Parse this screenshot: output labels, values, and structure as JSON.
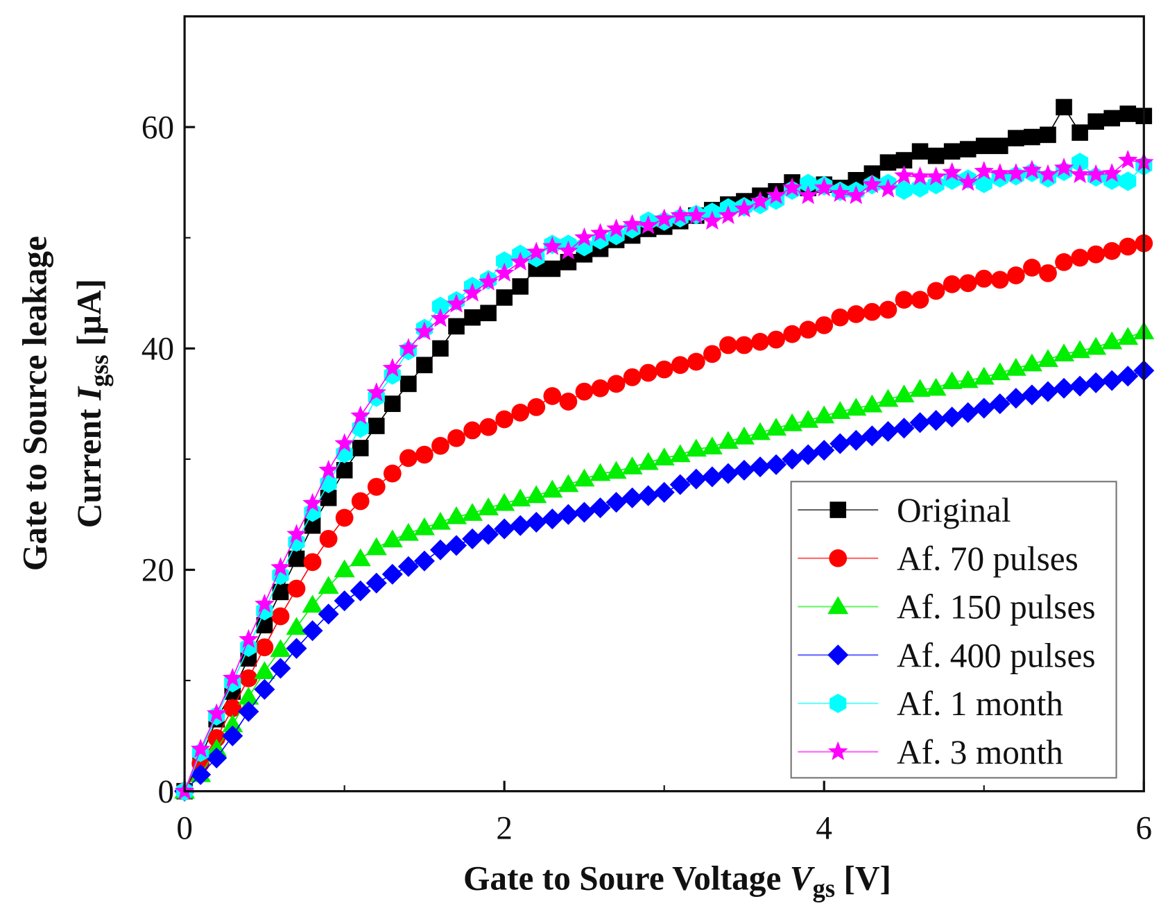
{
  "chart_data": {
    "type": "scatter",
    "title": "",
    "xlabel": {
      "main": "Gate to Soure Voltage ",
      "var": "V",
      "sub": "gs",
      "unit": " [V]"
    },
    "ylabel": {
      "line1": "Gate to Source leakage",
      "line2_main": "Current ",
      "var": "I",
      "sub": "gss",
      "unit": " [µA]"
    },
    "xlim": [
      0,
      6
    ],
    "ylim": [
      0,
      70
    ],
    "xticks": [
      "0",
      "2",
      "4",
      "6"
    ],
    "yticks": [
      "0",
      "20",
      "40",
      "60"
    ],
    "grid": false,
    "legend_position": "bottom-right",
    "x": [
      0,
      0.1,
      0.2,
      0.3,
      0.4,
      0.5,
      0.6,
      0.7,
      0.8,
      0.9,
      1.0,
      1.1,
      1.2,
      1.3,
      1.4,
      1.5,
      1.6,
      1.7,
      1.8,
      1.9,
      2.0,
      2.1,
      2.2,
      2.3,
      2.4,
      2.5,
      2.6,
      2.7,
      2.8,
      2.9,
      3.0,
      3.1,
      3.2,
      3.3,
      3.4,
      3.5,
      3.6,
      3.7,
      3.8,
      3.9,
      4.0,
      4.1,
      4.2,
      4.3,
      4.4,
      4.5,
      4.6,
      4.7,
      4.8,
      4.9,
      5.0,
      5.1,
      5.2,
      5.3,
      5.4,
      5.5,
      5.6,
      5.7,
      5.8,
      5.9,
      6.0
    ],
    "series": [
      {
        "name": "Original",
        "color": "#000000",
        "marker": "square",
        "values": [
          0,
          3,
          6.5,
          9,
          12,
          15,
          18,
          21,
          24,
          26.5,
          29,
          31,
          33,
          35,
          36.8,
          38.5,
          40,
          42,
          42.8,
          43.2,
          44.6,
          45.6,
          47.2,
          47.2,
          47.8,
          48.5,
          49,
          49.8,
          50.2,
          50.8,
          51,
          51.5,
          52,
          52.5,
          53,
          53.3,
          53.8,
          54.2,
          55,
          54.5,
          54.8,
          54.5,
          55.2,
          55.8,
          56.8,
          57,
          57.8,
          57.4,
          57.8,
          58,
          58.3,
          58.3,
          59,
          59.1,
          59.3,
          61.8,
          59.5,
          60.5,
          60.8,
          61.2,
          61
        ]
      },
      {
        "name": "Af. 70 pulses",
        "color": "#ff0000",
        "marker": "circle",
        "values": [
          0,
          2.5,
          4.8,
          7.5,
          10.2,
          13,
          15.8,
          18.3,
          20.7,
          22.8,
          24.7,
          26.2,
          27.5,
          28.7,
          30.1,
          30.4,
          31.2,
          31.9,
          32.6,
          32.9,
          33.6,
          34.2,
          34.7,
          35.7,
          35.2,
          36.1,
          36.4,
          36.8,
          37.4,
          37.8,
          38.1,
          38.5,
          38.8,
          39.5,
          40.3,
          40.3,
          40.6,
          40.8,
          41.3,
          41.7,
          42.1,
          42.8,
          43.1,
          43.3,
          43.5,
          44.4,
          44.4,
          45.2,
          45.8,
          45.9,
          46.3,
          46.2,
          46.6,
          47.3,
          46.8,
          47.8,
          48.2,
          48.5,
          48.8,
          49.2,
          49.5
        ]
      },
      {
        "name": "Af. 150 pulses",
        "color": "#00ee00",
        "marker": "triangle",
        "values": [
          0,
          1.5,
          3.8,
          6,
          8.5,
          10.8,
          12.8,
          14.8,
          16.8,
          18.5,
          20,
          21,
          22,
          22.7,
          23.3,
          23.8,
          24.3,
          24.8,
          25.1,
          25.6,
          26,
          26.4,
          26.7,
          27.2,
          27.7,
          28.2,
          28.7,
          28.9,
          29.3,
          29.7,
          30.1,
          30.4,
          30.9,
          31.1,
          31.6,
          32,
          32.4,
          32.8,
          33.2,
          33.5,
          33.9,
          34.3,
          34.6,
          34.9,
          35.4,
          35.8,
          36.3,
          36.4,
          37,
          37.1,
          37.4,
          37.8,
          38.2,
          38.6,
          39,
          39.5,
          39.8,
          40.1,
          40.6,
          41,
          41.5
        ]
      },
      {
        "name": "Af. 400 pulses",
        "color": "#0000ff",
        "marker": "diamond",
        "values": [
          0,
          1.5,
          3,
          5,
          7.2,
          9.2,
          11.1,
          12.9,
          14.5,
          16,
          17.2,
          18.1,
          18.8,
          19.6,
          20.3,
          20.8,
          21.8,
          22.2,
          22.8,
          23.2,
          23.7,
          24,
          24.3,
          24.6,
          25,
          25.2,
          25.6,
          26.1,
          26.5,
          26.7,
          27,
          27.7,
          28.2,
          28.4,
          28.7,
          29,
          29.3,
          29.5,
          30,
          30.4,
          30.8,
          31.4,
          31.7,
          32.1,
          32.5,
          32.8,
          33.3,
          33.5,
          33.8,
          34.2,
          34.6,
          35,
          35.5,
          35.8,
          36.1,
          36.4,
          36.6,
          36.9,
          37.1,
          37.5,
          38
        ]
      },
      {
        "name": "Af. 1 month",
        "color": "#00ffff",
        "marker": "hexagon",
        "values": [
          0,
          3.5,
          6.8,
          9.8,
          13,
          16.3,
          19.5,
          22.5,
          25.2,
          27.8,
          30.5,
          32.8,
          35.6,
          37.6,
          39.8,
          41.8,
          43.8,
          44.3,
          45.6,
          46.2,
          47.9,
          48.5,
          48.2,
          49.4,
          49.4,
          49.2,
          49.8,
          50.2,
          50.8,
          51.5,
          51.5,
          51.8,
          52.1,
          52.3,
          52.7,
          52.8,
          53,
          53.4,
          54.3,
          54.9,
          54.7,
          54.2,
          54.2,
          54.8,
          54.9,
          54.3,
          54.5,
          54.8,
          55.2,
          55.3,
          54.9,
          55.4,
          55.6,
          55.9,
          55.4,
          56,
          56.8,
          55.5,
          55.2,
          55.1,
          56.5
        ]
      },
      {
        "name": "Af. 3 month",
        "color": "#ff00ff",
        "marker": "star",
        "values": [
          0,
          3.8,
          7,
          10.2,
          13.7,
          16.9,
          20.2,
          23.2,
          26,
          29,
          31.4,
          33.9,
          36,
          38.2,
          40,
          41.5,
          42.7,
          44,
          45,
          46,
          46.8,
          47.8,
          48.7,
          49.2,
          48.8,
          50,
          50.4,
          50.8,
          51.2,
          51.1,
          51.7,
          52,
          52,
          51.5,
          52,
          52.6,
          53.3,
          53.8,
          54.5,
          53.8,
          54.5,
          54,
          53.8,
          54.8,
          54.4,
          55.6,
          55.5,
          55.5,
          55.9,
          55,
          56,
          55.8,
          55.8,
          56.1,
          55.7,
          56.3,
          55.7,
          55.7,
          55.8,
          57,
          56.8
        ]
      }
    ]
  }
}
